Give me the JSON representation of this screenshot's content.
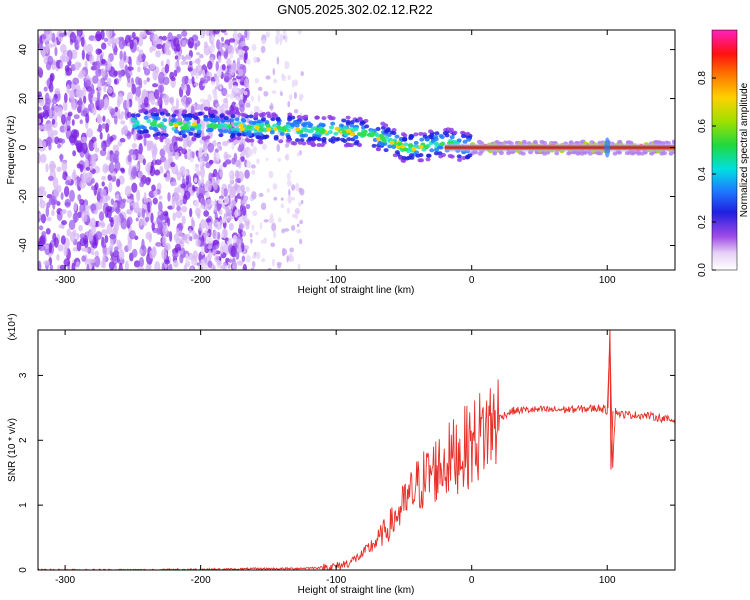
{
  "title": "GN05.2025.302.02.12.R22",
  "colors": {
    "snr_line": "#e8302a",
    "axis": "#000000",
    "background": "#ffffff"
  },
  "chart_data": [
    {
      "type": "heatmap",
      "xlabel": "Height of straight line (km)",
      "ylabel": "Frequency (Hz)",
      "xlim": [
        -320,
        150
      ],
      "ylim": [
        -50,
        48
      ],
      "xticks": [
        -300,
        -200,
        -100,
        0,
        100
      ],
      "yticks": [
        -40,
        -20,
        0,
        20,
        40
      ],
      "grid": false,
      "colorbar": {
        "label": "Normalized spectral amplitude",
        "ticks": [
          "0.0",
          "0.2",
          "0.4",
          "0.6",
          "0.8"
        ],
        "range": [
          0,
          1
        ]
      },
      "ridge": {
        "x": [
          -240,
          -220,
          -200,
          -180,
          -160,
          -140,
          -120,
          -100,
          -80,
          -60,
          -50,
          -40,
          -30,
          -20,
          -10,
          0,
          20,
          50,
          100,
          150
        ],
        "freq": [
          10,
          9,
          9,
          9,
          8,
          8,
          7,
          7,
          6,
          3,
          0,
          0,
          1,
          2,
          1,
          0,
          0,
          0,
          0,
          0
        ]
      }
    },
    {
      "type": "line",
      "xlabel": "Height of straight line (km)",
      "ylabel": "SNR (10 * v/v)",
      "yscale_note": "(x10⁴)",
      "xlim": [
        -320,
        150
      ],
      "ylim": [
        0,
        3.7
      ],
      "xticks": [
        -300,
        -200,
        -100,
        0,
        100
      ],
      "yticks": [
        0,
        1,
        2,
        3
      ],
      "grid": false,
      "series": [
        {
          "x": [
            -320,
            -280,
            -240,
            -200,
            -180,
            -160,
            -140,
            -120,
            -100,
            -90,
            -80,
            -70,
            -60,
            -50,
            -40,
            -30,
            -20,
            -10,
            0,
            10,
            20,
            30,
            40,
            60,
            80,
            95,
            100,
            102,
            104,
            106,
            110,
            130,
            150
          ],
          "y": [
            0.0,
            0.0,
            0.0,
            0.01,
            0.01,
            0.02,
            0.02,
            0.03,
            0.05,
            0.12,
            0.25,
            0.45,
            0.7,
            1.0,
            1.3,
            1.5,
            1.65,
            1.8,
            1.95,
            2.15,
            2.35,
            2.45,
            2.47,
            2.47,
            2.48,
            2.5,
            2.45,
            3.6,
            1.6,
            2.45,
            2.4,
            2.38,
            2.3
          ]
        }
      ]
    }
  ]
}
